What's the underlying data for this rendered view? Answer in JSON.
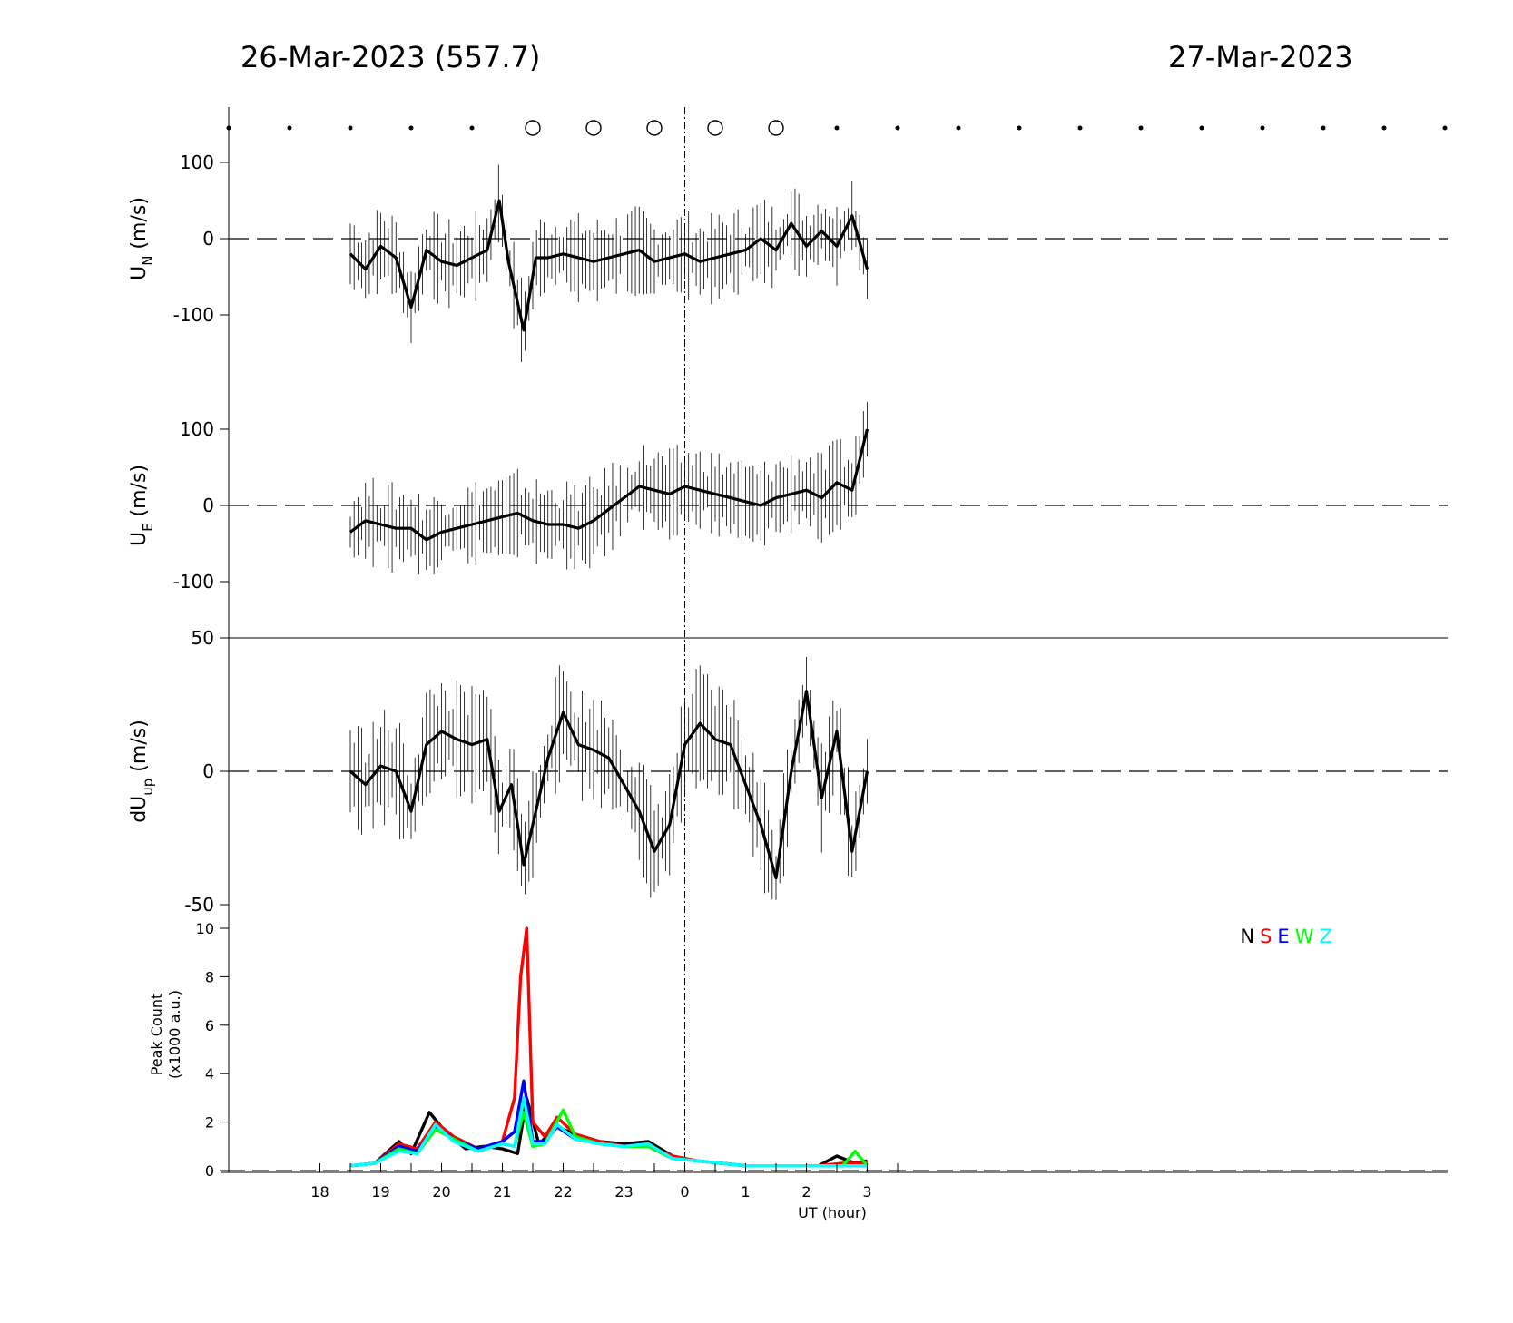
{
  "header": {
    "date_left": "26-Mar-2023 (557.7)",
    "date_right": "27-Mar-2023"
  },
  "legend": [
    {
      "label": "N",
      "color": "#000000"
    },
    {
      "label": "S",
      "color": "#ff0000"
    },
    {
      "label": "E",
      "color": "#0000ff"
    },
    {
      "label": "W",
      "color": "#00ff00"
    },
    {
      "label": "Z",
      "color": "#00ffff"
    }
  ],
  "chart_data": [
    {
      "type": "line",
      "panel": "UN",
      "ylabel_main": "U",
      "ylabel_sub": "N",
      "ylabel_unit": " (m/s)",
      "yticks": [
        100,
        0,
        -100
      ],
      "ylim": [
        -180,
        180
      ],
      "x_range_hours": [
        18.5,
        27.0
      ],
      "series": [
        {
          "color": "#000000",
          "x": [
            18.5,
            18.75,
            19.0,
            19.25,
            19.5,
            19.75,
            20.0,
            20.25,
            20.5,
            20.75,
            20.95,
            21.1,
            21.35,
            21.55,
            21.75,
            22.0,
            22.25,
            22.5,
            22.75,
            23.0,
            23.25,
            23.5,
            23.75,
            24.0,
            24.25,
            24.5,
            24.75,
            25.0,
            25.25,
            25.5,
            25.75,
            26.0,
            26.25,
            26.5,
            26.75,
            27.0
          ],
          "y": [
            -20,
            -40,
            -10,
            -25,
            -90,
            -15,
            -30,
            -35,
            -25,
            -15,
            50,
            -30,
            -120,
            -25,
            -25,
            -20,
            -25,
            -30,
            -25,
            -20,
            -15,
            -30,
            -25,
            -20,
            -30,
            -25,
            -20,
            -15,
            0,
            -15,
            20,
            -10,
            10,
            -10,
            30,
            -40
          ]
        }
      ],
      "errorbar_halfwidth": 40
    },
    {
      "type": "line",
      "panel": "UE",
      "ylabel_main": "U",
      "ylabel_sub": "E",
      "ylabel_unit": " (m/s)",
      "yticks": [
        100,
        0,
        -100
      ],
      "ylim": [
        -175,
        175
      ],
      "x_range_hours": [
        18.5,
        27.0
      ],
      "series": [
        {
          "color": "#000000",
          "x": [
            18.5,
            18.75,
            19.0,
            19.25,
            19.5,
            19.75,
            20.0,
            20.25,
            20.5,
            20.75,
            21.0,
            21.25,
            21.5,
            21.75,
            22.0,
            22.25,
            22.5,
            22.75,
            23.0,
            23.25,
            23.5,
            23.75,
            24.0,
            24.25,
            24.5,
            24.75,
            25.0,
            25.25,
            25.5,
            25.75,
            26.0,
            26.25,
            26.5,
            26.75,
            27.0
          ],
          "y": [
            -35,
            -20,
            -25,
            -30,
            -30,
            -45,
            -35,
            -30,
            -25,
            -20,
            -15,
            -10,
            -20,
            -25,
            -25,
            -30,
            -20,
            -5,
            10,
            25,
            20,
            15,
            25,
            20,
            15,
            10,
            5,
            0,
            10,
            15,
            20,
            10,
            30,
            20,
            100
          ]
        }
      ],
      "errorbar_halfwidth": 40
    },
    {
      "type": "line",
      "panel": "dUup",
      "ylabel_main": "dU",
      "ylabel_sub": "up",
      "ylabel_unit": " (m/s)",
      "yticks": [
        50,
        0,
        -50
      ],
      "ylim": [
        -50,
        50
      ],
      "x_range_hours": [
        18.5,
        27.0
      ],
      "series": [
        {
          "color": "#000000",
          "x": [
            18.5,
            18.75,
            19.0,
            19.25,
            19.5,
            19.75,
            20.0,
            20.25,
            20.5,
            20.75,
            20.95,
            21.15,
            21.35,
            21.5,
            21.75,
            22.0,
            22.25,
            22.5,
            22.75,
            23.0,
            23.25,
            23.5,
            23.75,
            24.0,
            24.25,
            24.5,
            24.75,
            25.0,
            25.25,
            25.5,
            25.75,
            26.0,
            26.25,
            26.5,
            26.75,
            27.0
          ],
          "y": [
            0,
            -5,
            2,
            0,
            -15,
            10,
            15,
            12,
            10,
            12,
            -15,
            -5,
            -35,
            -20,
            5,
            22,
            10,
            8,
            5,
            -5,
            -15,
            -30,
            -20,
            10,
            18,
            12,
            10,
            -5,
            -20,
            -40,
            0,
            30,
            -10,
            15,
            -30,
            0
          ]
        }
      ],
      "errorbar_halfwidth": 15
    },
    {
      "type": "line",
      "panel": "peak",
      "ylabel": "Peak Count",
      "ylabel2": "(x1000 a.u.)",
      "yticks": [
        10,
        8,
        6,
        4,
        2,
        0
      ],
      "ylim": [
        0,
        10
      ],
      "xlabel": "UT (hour)",
      "xticklabels": [
        "18",
        "19",
        "20",
        "21",
        "22",
        "23",
        "0",
        "1",
        "2",
        "3"
      ],
      "x_range_hours": [
        18.5,
        27.0
      ],
      "series": [
        {
          "name": "N",
          "color": "#000000",
          "x": [
            18.5,
            18.9,
            19.3,
            19.5,
            19.8,
            20.1,
            20.4,
            20.7,
            21.0,
            21.25,
            21.4,
            21.6,
            21.9,
            22.2,
            22.6,
            23.0,
            23.4,
            23.8,
            24.2,
            24.6,
            25.0,
            25.6,
            26.2,
            26.5,
            26.8,
            27.0
          ],
          "y": [
            0.2,
            0.3,
            1.2,
            0.7,
            2.4,
            1.5,
            0.9,
            1.0,
            0.9,
            0.7,
            3.0,
            1.1,
            1.8,
            1.5,
            1.2,
            1.1,
            1.2,
            0.6,
            0.4,
            0.3,
            0.2,
            0.2,
            0.2,
            0.6,
            0.3,
            0.4
          ]
        },
        {
          "name": "S",
          "color": "#ff0000",
          "x": [
            18.5,
            18.9,
            19.3,
            19.6,
            19.9,
            20.2,
            20.6,
            21.0,
            21.2,
            21.3,
            21.4,
            21.5,
            21.7,
            21.9,
            22.2,
            22.6,
            23.0,
            23.4,
            23.8,
            24.2,
            24.6,
            25.0,
            25.6,
            26.2,
            26.6,
            27.0
          ],
          "y": [
            0.2,
            0.3,
            1.1,
            0.9,
            2.0,
            1.4,
            0.9,
            1.2,
            3.0,
            8.0,
            10.0,
            2.0,
            1.4,
            2.2,
            1.5,
            1.2,
            1.0,
            1.0,
            0.6,
            0.4,
            0.3,
            0.2,
            0.2,
            0.2,
            0.3,
            0.3
          ]
        },
        {
          "name": "E",
          "color": "#0000ff",
          "x": [
            18.5,
            18.9,
            19.3,
            19.6,
            19.9,
            20.2,
            20.6,
            21.0,
            21.2,
            21.35,
            21.5,
            21.7,
            21.9,
            22.2,
            22.6,
            23.0,
            23.4,
            23.8,
            24.2,
            24.6,
            25.0,
            25.6,
            26.2,
            26.6,
            27.0
          ],
          "y": [
            0.2,
            0.3,
            1.0,
            0.8,
            1.8,
            1.3,
            0.9,
            1.2,
            1.6,
            3.7,
            1.2,
            1.2,
            1.8,
            1.3,
            1.1,
            1.0,
            1.0,
            0.5,
            0.4,
            0.3,
            0.2,
            0.2,
            0.2,
            0.2,
            0.2
          ]
        },
        {
          "name": "W",
          "color": "#00ff00",
          "x": [
            18.5,
            18.9,
            19.3,
            19.6,
            19.9,
            20.2,
            20.6,
            21.0,
            21.2,
            21.35,
            21.5,
            21.7,
            22.0,
            22.2,
            22.6,
            23.0,
            23.4,
            23.8,
            24.2,
            24.6,
            25.0,
            25.6,
            26.2,
            26.6,
            26.8,
            27.0
          ],
          "y": [
            0.2,
            0.3,
            0.9,
            0.7,
            1.7,
            1.3,
            0.8,
            1.1,
            1.0,
            2.4,
            1.0,
            1.1,
            2.5,
            1.4,
            1.1,
            1.0,
            1.0,
            0.5,
            0.4,
            0.3,
            0.2,
            0.2,
            0.2,
            0.2,
            0.8,
            0.2
          ]
        },
        {
          "name": "Z",
          "color": "#00ffff",
          "x": [
            18.5,
            18.9,
            19.3,
            19.6,
            19.9,
            20.2,
            20.6,
            21.0,
            21.2,
            21.35,
            21.5,
            21.7,
            21.9,
            22.2,
            22.6,
            23.0,
            23.4,
            23.8,
            24.2,
            24.6,
            25.0,
            25.6,
            26.2,
            26.6,
            27.0
          ],
          "y": [
            0.2,
            0.3,
            0.8,
            0.7,
            1.9,
            1.2,
            0.8,
            1.1,
            1.0,
            3.0,
            1.1,
            1.1,
            1.9,
            1.3,
            1.1,
            1.0,
            1.1,
            0.5,
            0.4,
            0.3,
            0.2,
            0.2,
            0.2,
            0.2,
            0.2
          ]
        }
      ]
    }
  ]
}
